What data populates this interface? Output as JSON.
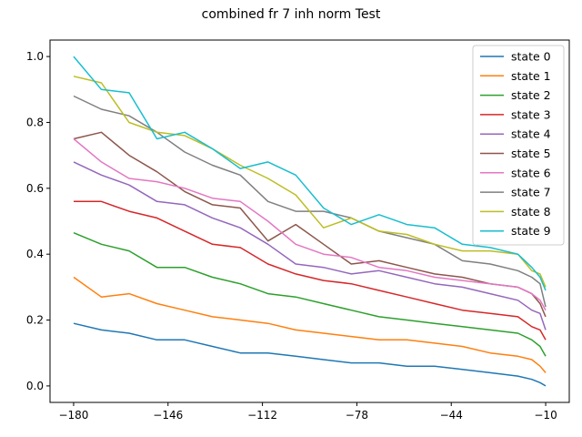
{
  "chart_data": {
    "type": "line",
    "title": "combined fr 7 inh norm Test",
    "xlabel": "",
    "ylabel": "",
    "xlim": [
      -188.5,
      -1.5
    ],
    "ylim": [
      -0.05,
      1.05
    ],
    "xticks": [
      -180,
      -146,
      -112,
      -78,
      -44,
      -10
    ],
    "xtick_labels": [
      "−180",
      "−146",
      "−112",
      "−78",
      "−44",
      "−10"
    ],
    "yticks": [
      0.0,
      0.2,
      0.4,
      0.6,
      0.8,
      1.0
    ],
    "ytick_labels": [
      "0.0",
      "0.2",
      "0.4",
      "0.6",
      "0.8",
      "1.0"
    ],
    "grid": false,
    "legend_position": "top-right",
    "x": [
      -180,
      -170,
      -160,
      -150,
      -140,
      -130,
      -120,
      -110,
      -100,
      -90,
      -80,
      -70,
      -60,
      -50,
      -40,
      -30,
      -20,
      -15,
      -12,
      -10
    ],
    "series": [
      {
        "name": "state 0",
        "color": "#1f77b4",
        "values": [
          0.19,
          0.17,
          0.16,
          0.14,
          0.14,
          0.12,
          0.1,
          0.1,
          0.09,
          0.08,
          0.07,
          0.07,
          0.06,
          0.06,
          0.05,
          0.04,
          0.03,
          0.02,
          0.01,
          0.0
        ]
      },
      {
        "name": "state 1",
        "color": "#ff7f0e",
        "values": [
          0.33,
          0.27,
          0.28,
          0.25,
          0.23,
          0.21,
          0.2,
          0.19,
          0.17,
          0.16,
          0.15,
          0.14,
          0.14,
          0.13,
          0.12,
          0.1,
          0.09,
          0.08,
          0.06,
          0.04
        ]
      },
      {
        "name": "state 2",
        "color": "#2ca02c",
        "values": [
          0.465,
          0.43,
          0.41,
          0.36,
          0.36,
          0.33,
          0.31,
          0.28,
          0.27,
          0.25,
          0.23,
          0.21,
          0.2,
          0.19,
          0.18,
          0.17,
          0.16,
          0.14,
          0.12,
          0.09
        ]
      },
      {
        "name": "state 3",
        "color": "#d62728",
        "values": [
          0.56,
          0.56,
          0.53,
          0.51,
          0.47,
          0.43,
          0.42,
          0.37,
          0.34,
          0.32,
          0.31,
          0.29,
          0.27,
          0.25,
          0.23,
          0.22,
          0.21,
          0.18,
          0.17,
          0.14
        ]
      },
      {
        "name": "state 4",
        "color": "#9467bd",
        "values": [
          0.68,
          0.64,
          0.61,
          0.56,
          0.55,
          0.51,
          0.48,
          0.43,
          0.37,
          0.36,
          0.34,
          0.35,
          0.33,
          0.31,
          0.3,
          0.28,
          0.26,
          0.23,
          0.22,
          0.17
        ]
      },
      {
        "name": "state 5",
        "color": "#8c564b",
        "values": [
          0.75,
          0.77,
          0.7,
          0.65,
          0.59,
          0.55,
          0.54,
          0.44,
          0.49,
          0.43,
          0.37,
          0.38,
          0.36,
          0.34,
          0.33,
          0.31,
          0.3,
          0.28,
          0.25,
          0.21
        ]
      },
      {
        "name": "state 6",
        "color": "#e377c2",
        "values": [
          0.75,
          0.68,
          0.63,
          0.62,
          0.6,
          0.57,
          0.56,
          0.5,
          0.43,
          0.4,
          0.39,
          0.36,
          0.35,
          0.33,
          0.32,
          0.31,
          0.3,
          0.28,
          0.26,
          0.23
        ]
      },
      {
        "name": "state 7",
        "color": "#7f7f7f",
        "values": [
          0.88,
          0.84,
          0.82,
          0.77,
          0.71,
          0.67,
          0.64,
          0.56,
          0.53,
          0.53,
          0.51,
          0.47,
          0.45,
          0.43,
          0.38,
          0.37,
          0.35,
          0.33,
          0.31,
          0.24
        ]
      },
      {
        "name": "state 8",
        "color": "#bcbd22",
        "values": [
          0.94,
          0.92,
          0.8,
          0.77,
          0.76,
          0.72,
          0.67,
          0.63,
          0.58,
          0.48,
          0.51,
          0.47,
          0.46,
          0.43,
          0.41,
          0.41,
          0.4,
          0.35,
          0.34,
          0.3
        ]
      },
      {
        "name": "state 9",
        "color": "#17becf",
        "values": [
          1.0,
          0.9,
          0.89,
          0.75,
          0.77,
          0.72,
          0.66,
          0.68,
          0.64,
          0.54,
          0.49,
          0.52,
          0.49,
          0.48,
          0.43,
          0.42,
          0.4,
          0.36,
          0.33,
          0.29
        ]
      }
    ]
  }
}
